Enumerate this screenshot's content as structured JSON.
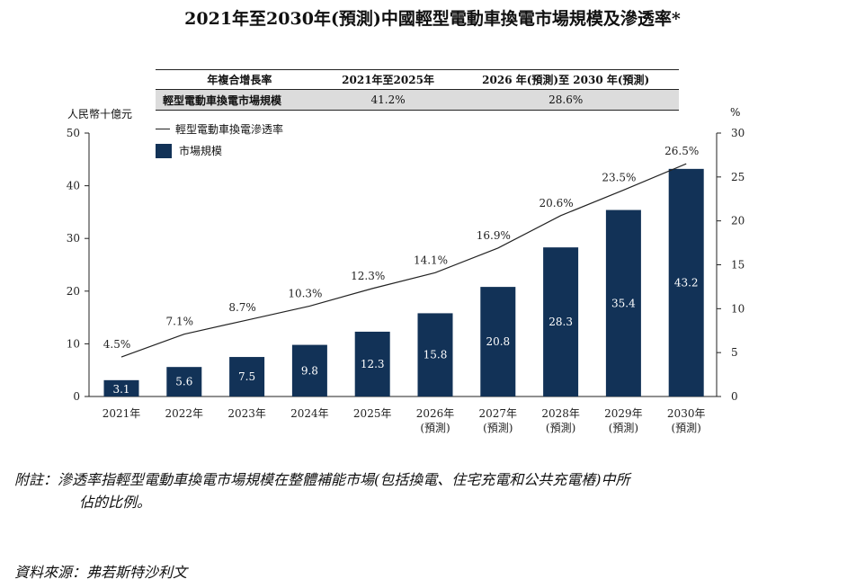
{
  "title": "2021年至2030年(預測)中國輕型電動車換電市場規模及滲透率*",
  "cagr_table": {
    "headers": [
      "年複合增長率",
      "2021年至2025年",
      "2026 年(預測)至 2030 年(預測)"
    ],
    "row": [
      "輕型電動車換電市場規模",
      "41.2%",
      "28.6%"
    ]
  },
  "left_unit": "人民幣十億元",
  "right_unit": "%",
  "legend": {
    "line_label": "輕型電動車換電滲透率",
    "bar_label": "市場規模"
  },
  "colors": {
    "bar": "#123257",
    "line": "#222222",
    "bar_label": "#ffffff"
  },
  "chart_data": {
    "type": "bar+line",
    "categories": [
      "2021年",
      "2022年",
      "2023年",
      "2024年",
      "2025年",
      "2026年",
      "2027年",
      "2028年",
      "2029年",
      "2030年"
    ],
    "category_sub": [
      "",
      "",
      "",
      "",
      "",
      "(預測)",
      "(預測)",
      "(預測)",
      "(預測)",
      "(預測)"
    ],
    "series": [
      {
        "name": "市場規模",
        "type": "bar",
        "axis": "left",
        "values": [
          3.1,
          5.6,
          7.5,
          9.8,
          12.3,
          15.8,
          20.8,
          28.3,
          35.4,
          43.2
        ],
        "labels": [
          "3.1",
          "5.6",
          "7.5",
          "9.8",
          "12.3",
          "15.8",
          "20.8",
          "28.3",
          "35.4",
          "43.2"
        ]
      },
      {
        "name": "輕型電動車換電滲透率",
        "type": "line",
        "axis": "right",
        "values": [
          4.5,
          7.1,
          8.7,
          10.3,
          12.3,
          14.1,
          16.9,
          20.6,
          23.5,
          26.5
        ],
        "labels": [
          "4.5%",
          "7.1%",
          "8.7%",
          "10.3%",
          "12.3%",
          "14.1%",
          "16.9%",
          "20.6%",
          "23.5%",
          "26.5%"
        ]
      }
    ],
    "y_left": {
      "range": [
        0,
        50
      ],
      "ticks": [
        "0",
        "10",
        "20",
        "30",
        "40",
        "50"
      ]
    },
    "y_right": {
      "range": [
        0,
        30
      ],
      "ticks": [
        "0",
        "5",
        "10",
        "15",
        "20",
        "25",
        "30"
      ]
    },
    "grid": false
  },
  "note": {
    "label": "附註：",
    "text_line1": "滲透率指輕型電動車換電市場規模在整體補能市場(包括換電、住宅充電和公共充電樁)中所",
    "text_line2": "佔的比例。"
  },
  "source": "資料來源：弗若斯特沙利文"
}
